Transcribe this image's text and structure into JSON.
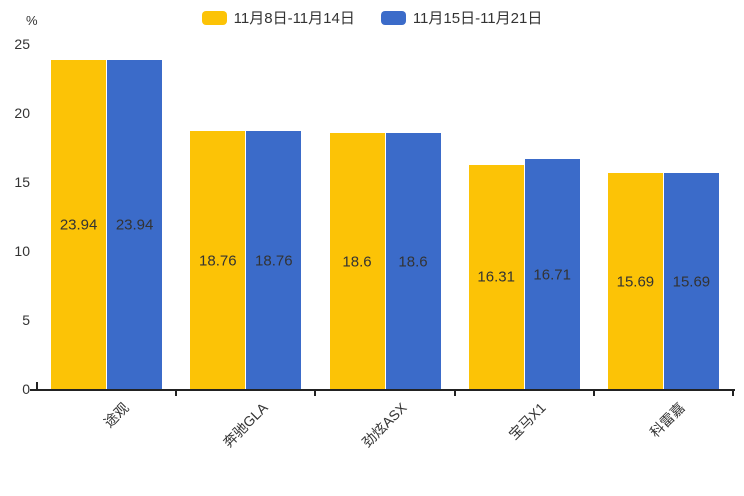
{
  "chart_data": {
    "type": "bar",
    "title": "",
    "categories": [
      "途观",
      "奔驰GLA",
      "劲炫ASX",
      "宝马X1",
      "科雷嘉"
    ],
    "series": [
      {
        "name": "11月8日-11月14日",
        "color": "#fcc306",
        "values": [
          23.94,
          18.76,
          18.6,
          16.31,
          15.69
        ]
      },
      {
        "name": "11月15日-11月21日",
        "color": "#3b6bc9",
        "values": [
          23.94,
          18.76,
          18.6,
          16.71,
          15.69
        ]
      }
    ],
    "xlabel": "",
    "ylabel": "%",
    "ylim": [
      0,
      25
    ],
    "yticks": [
      0,
      5,
      10,
      15,
      20,
      25
    ],
    "legend_position": "top",
    "grid": false,
    "value_labels_shown": true,
    "axis_color": "#222222",
    "text_color": "#333333"
  }
}
